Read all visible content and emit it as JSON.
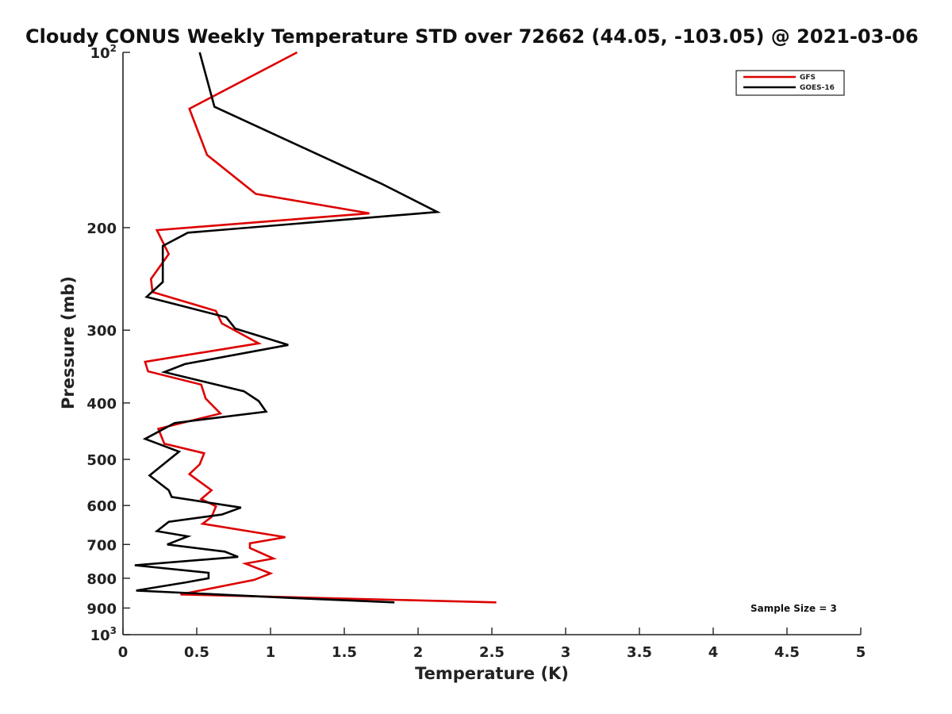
{
  "chart_data": {
    "type": "line",
    "title": "Cloudy CONUS Weekly Temperature STD over 72662 (44.05, -103.05) @ 2021-03-06",
    "xlabel": "Temperature (K)",
    "ylabel": "Pressure (mb)",
    "xlim": [
      0,
      5
    ],
    "ylim": [
      100,
      1000
    ],
    "y_scale": "log",
    "y_reversed": true,
    "grid": false,
    "x_ticks": [
      "0",
      "0.5",
      "1",
      "1.5",
      "2",
      "2.5",
      "3",
      "3.5",
      "4",
      "4.5",
      "5"
    ],
    "y_ticks": [
      {
        "value": 100,
        "base": "10",
        "exp": "2"
      },
      {
        "value": 200,
        "label": "200"
      },
      {
        "value": 300,
        "label": "300"
      },
      {
        "value": 400,
        "label": "400"
      },
      {
        "value": 500,
        "label": "500"
      },
      {
        "value": 600,
        "label": "600"
      },
      {
        "value": 700,
        "label": "700"
      },
      {
        "value": 800,
        "label": "800"
      },
      {
        "value": 900,
        "label": "900"
      },
      {
        "value": 1000,
        "base": "10",
        "exp": "3"
      }
    ],
    "legend_position": "top-right",
    "annotation": "Sample Size = 3",
    "series": [
      {
        "name": "GFS",
        "color": "#dd0000",
        "points": [
          [
            1.18,
            100
          ],
          [
            0.45,
            125
          ],
          [
            0.57,
            150
          ],
          [
            0.9,
            175
          ],
          [
            1.67,
            189
          ],
          [
            0.23,
            202
          ],
          [
            0.31,
            222
          ],
          [
            0.19,
            245
          ],
          [
            0.2,
            258
          ],
          [
            0.63,
            278
          ],
          [
            0.67,
            292
          ],
          [
            0.92,
            316
          ],
          [
            0.15,
            340
          ],
          [
            0.17,
            353
          ],
          [
            0.53,
            372
          ],
          [
            0.56,
            393
          ],
          [
            0.66,
            417
          ],
          [
            0.24,
            443
          ],
          [
            0.28,
            470
          ],
          [
            0.55,
            488
          ],
          [
            0.52,
            510
          ],
          [
            0.45,
            530
          ],
          [
            0.6,
            565
          ],
          [
            0.53,
            585
          ],
          [
            0.63,
            602
          ],
          [
            0.6,
            628
          ],
          [
            0.54,
            645
          ],
          [
            1.1,
            680
          ],
          [
            0.86,
            697
          ],
          [
            0.86,
            710
          ],
          [
            1.02,
            740
          ],
          [
            0.83,
            755
          ],
          [
            1.0,
            785
          ],
          [
            0.89,
            805
          ],
          [
            0.39,
            853
          ],
          [
            2.53,
            880
          ]
        ]
      },
      {
        "name": "GOES-16",
        "color": "#000000",
        "points": [
          [
            0.52,
            100
          ],
          [
            0.62,
            124
          ],
          [
            1.75,
            168
          ],
          [
            2.13,
            188
          ],
          [
            0.44,
            204
          ],
          [
            0.27,
            215
          ],
          [
            0.27,
            230
          ],
          [
            0.27,
            248
          ],
          [
            0.16,
            263
          ],
          [
            0.7,
            285
          ],
          [
            0.76,
            298
          ],
          [
            1.12,
            318
          ],
          [
            0.42,
            343
          ],
          [
            0.28,
            354
          ],
          [
            0.82,
            382
          ],
          [
            0.92,
            397
          ],
          [
            0.97,
            414
          ],
          [
            0.35,
            433
          ],
          [
            0.15,
            461
          ],
          [
            0.38,
            485
          ],
          [
            0.18,
            533
          ],
          [
            0.31,
            565
          ],
          [
            0.33,
            580
          ],
          [
            0.8,
            605
          ],
          [
            0.67,
            622
          ],
          [
            0.31,
            640
          ],
          [
            0.23,
            664
          ],
          [
            0.44,
            678
          ],
          [
            0.3,
            700
          ],
          [
            0.69,
            720
          ],
          [
            0.78,
            735
          ],
          [
            0.08,
            760
          ],
          [
            0.58,
            783
          ],
          [
            0.58,
            800
          ],
          [
            0.43,
            813
          ],
          [
            0.09,
            840
          ],
          [
            1.15,
            865
          ],
          [
            1.84,
            880
          ]
        ]
      }
    ]
  }
}
